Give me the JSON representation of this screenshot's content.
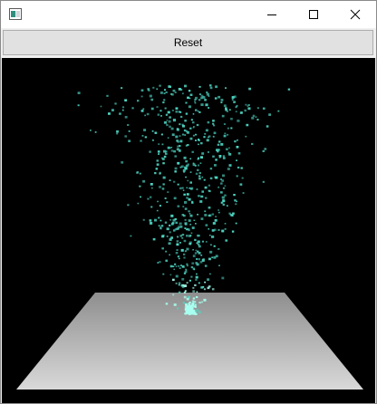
{
  "window": {
    "title": "",
    "controls": {
      "minimize": "minimize",
      "maximize": "maximize",
      "close": "close"
    }
  },
  "toolbar": {
    "reset_label": "Reset"
  },
  "scene": {
    "background_color": "#000000",
    "floor_color_near": "#d9d9d9",
    "floor_color_far": "#8e8e8e",
    "particle_color": "#4fd6c4",
    "particle_color_bright": "#a8fff0"
  }
}
